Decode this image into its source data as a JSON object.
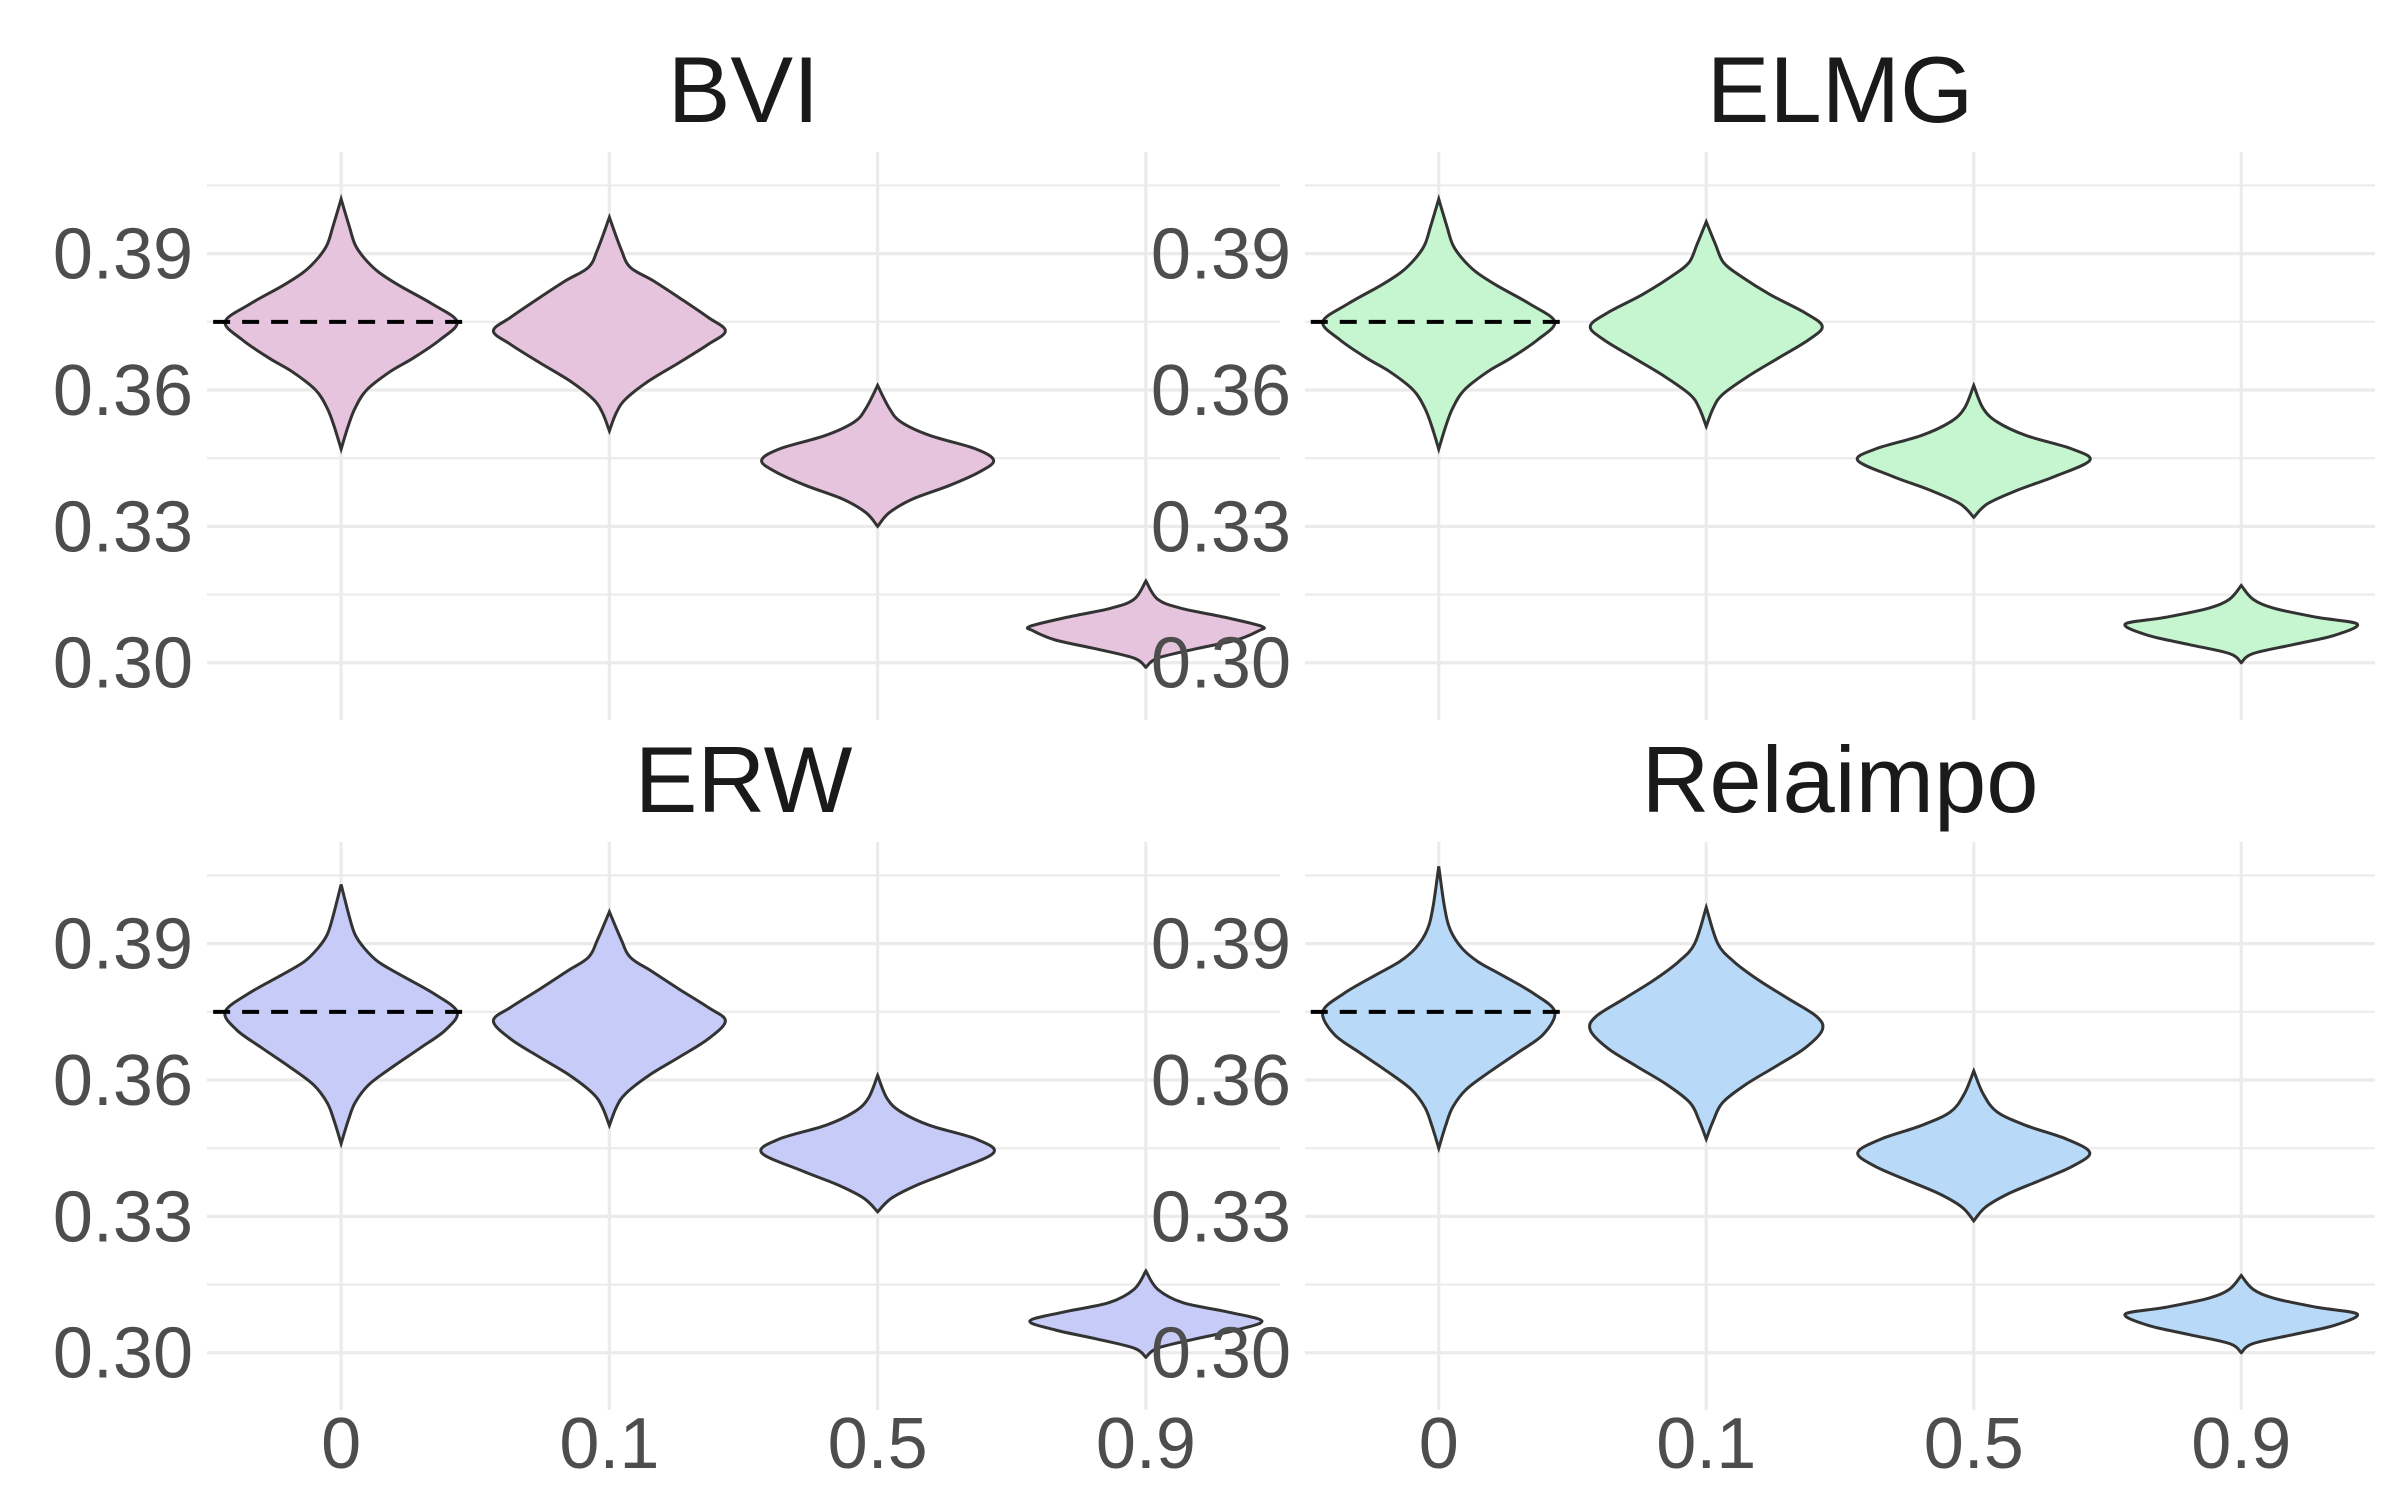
{
  "chart_data": [
    {
      "type": "violin",
      "title": "BVI",
      "color": "#E7C4DD",
      "categories": [
        "0",
        "0.1",
        "0.5",
        "0.9"
      ],
      "ylim": [
        0.294,
        0.415
      ],
      "y_ticks": [
        "0.30",
        "0.33",
        "0.36",
        "0.39"
      ],
      "reference_line": 0.375,
      "violins": [
        {
          "x": "0",
          "min": 0.347,
          "max": 0.402,
          "profile": [
            [
              0.347,
              0.0
            ],
            [
              0.352,
              0.06
            ],
            [
              0.356,
              0.12
            ],
            [
              0.36,
              0.22
            ],
            [
              0.364,
              0.42
            ],
            [
              0.367,
              0.62
            ],
            [
              0.371,
              0.85
            ],
            [
              0.375,
              1.0
            ],
            [
              0.379,
              0.78
            ],
            [
              0.383,
              0.5
            ],
            [
              0.386,
              0.32
            ],
            [
              0.389,
              0.2
            ],
            [
              0.392,
              0.12
            ],
            [
              0.396,
              0.07
            ],
            [
              0.402,
              0.0
            ]
          ]
        },
        {
          "x": "0.1",
          "min": 0.351,
          "max": 0.398,
          "profile": [
            [
              0.351,
              0.0
            ],
            [
              0.355,
              0.06
            ],
            [
              0.358,
              0.14
            ],
            [
              0.362,
              0.34
            ],
            [
              0.366,
              0.6
            ],
            [
              0.37,
              0.85
            ],
            [
              0.373,
              1.0
            ],
            [
              0.376,
              0.85
            ],
            [
              0.38,
              0.62
            ],
            [
              0.384,
              0.38
            ],
            [
              0.387,
              0.18
            ],
            [
              0.391,
              0.1
            ],
            [
              0.398,
              0.0
            ]
          ]
        },
        {
          "x": "0.5",
          "min": 0.33,
          "max": 0.361,
          "profile": [
            [
              0.33,
              0.0
            ],
            [
              0.333,
              0.1
            ],
            [
              0.336,
              0.3
            ],
            [
              0.339,
              0.62
            ],
            [
              0.342,
              0.88
            ],
            [
              0.3445,
              1.0
            ],
            [
              0.347,
              0.85
            ],
            [
              0.35,
              0.45
            ],
            [
              0.353,
              0.2
            ],
            [
              0.356,
              0.1
            ],
            [
              0.361,
              0.0
            ]
          ]
        },
        {
          "x": "0.9",
          "min": 0.299,
          "max": 0.318,
          "profile": [
            [
              0.299,
              0.0
            ],
            [
              0.301,
              0.1
            ],
            [
              0.303,
              0.42
            ],
            [
              0.305,
              0.78
            ],
            [
              0.307,
              0.97
            ],
            [
              0.308,
              1.0
            ],
            [
              0.31,
              0.68
            ],
            [
              0.312,
              0.3
            ],
            [
              0.314,
              0.1
            ],
            [
              0.318,
              0.0
            ]
          ]
        }
      ]
    },
    {
      "type": "violin",
      "title": "ELMG",
      "color": "#C6F6D0",
      "categories": [
        "0",
        "0.1",
        "0.5",
        "0.9"
      ],
      "ylim": [
        0.294,
        0.415
      ],
      "y_ticks": [
        "0.30",
        "0.33",
        "0.36",
        "0.39"
      ],
      "reference_line": 0.375,
      "violins": [
        {
          "x": "0",
          "min": 0.347,
          "max": 0.402,
          "profile": [
            [
              0.347,
              0.0
            ],
            [
              0.352,
              0.06
            ],
            [
              0.356,
              0.12
            ],
            [
              0.36,
              0.22
            ],
            [
              0.364,
              0.42
            ],
            [
              0.367,
              0.62
            ],
            [
              0.371,
              0.85
            ],
            [
              0.375,
              1.0
            ],
            [
              0.379,
              0.78
            ],
            [
              0.383,
              0.5
            ],
            [
              0.386,
              0.32
            ],
            [
              0.389,
              0.2
            ],
            [
              0.392,
              0.12
            ],
            [
              0.396,
              0.07
            ],
            [
              0.402,
              0.0
            ]
          ]
        },
        {
          "x": "0.1",
          "min": 0.352,
          "max": 0.397,
          "profile": [
            [
              0.352,
              0.0
            ],
            [
              0.356,
              0.06
            ],
            [
              0.359,
              0.14
            ],
            [
              0.363,
              0.36
            ],
            [
              0.367,
              0.62
            ],
            [
              0.371,
              0.88
            ],
            [
              0.374,
              1.0
            ],
            [
              0.377,
              0.85
            ],
            [
              0.381,
              0.55
            ],
            [
              0.385,
              0.3
            ],
            [
              0.388,
              0.15
            ],
            [
              0.392,
              0.08
            ],
            [
              0.397,
              0.0
            ]
          ]
        },
        {
          "x": "0.5",
          "min": 0.332,
          "max": 0.361,
          "profile": [
            [
              0.332,
              0.0
            ],
            [
              0.335,
              0.12
            ],
            [
              0.338,
              0.38
            ],
            [
              0.341,
              0.7
            ],
            [
              0.3445,
              1.0
            ],
            [
              0.347,
              0.85
            ],
            [
              0.35,
              0.45
            ],
            [
              0.353,
              0.2
            ],
            [
              0.356,
              0.08
            ],
            [
              0.361,
              0.0
            ]
          ]
        },
        {
          "x": "0.9",
          "min": 0.3,
          "max": 0.317,
          "profile": [
            [
              0.3,
              0.0
            ],
            [
              0.302,
              0.1
            ],
            [
              0.304,
              0.45
            ],
            [
              0.306,
              0.8
            ],
            [
              0.3085,
              1.0
            ],
            [
              0.31,
              0.65
            ],
            [
              0.312,
              0.28
            ],
            [
              0.314,
              0.1
            ],
            [
              0.317,
              0.0
            ]
          ]
        }
      ]
    },
    {
      "type": "violin",
      "title": "ERW",
      "color": "#C6CCF7",
      "categories": [
        "0",
        "0.1",
        "0.5",
        "0.9"
      ],
      "ylim": [
        0.294,
        0.415
      ],
      "y_ticks": [
        "0.30",
        "0.33",
        "0.36",
        "0.39"
      ],
      "reference_line": 0.375,
      "violins": [
        {
          "x": "0",
          "min": 0.346,
          "max": 0.403,
          "profile": [
            [
              0.346,
              0.0
            ],
            [
              0.351,
              0.06
            ],
            [
              0.355,
              0.12
            ],
            [
              0.359,
              0.24
            ],
            [
              0.363,
              0.45
            ],
            [
              0.367,
              0.68
            ],
            [
              0.371,
              0.9
            ],
            [
              0.375,
              1.0
            ],
            [
              0.379,
              0.8
            ],
            [
              0.383,
              0.52
            ],
            [
              0.386,
              0.32
            ],
            [
              0.389,
              0.2
            ],
            [
              0.392,
              0.12
            ],
            [
              0.396,
              0.07
            ],
            [
              0.403,
              0.0
            ]
          ]
        },
        {
          "x": "0.1",
          "min": 0.35,
          "max": 0.397,
          "profile": [
            [
              0.35,
              0.0
            ],
            [
              0.354,
              0.06
            ],
            [
              0.357,
              0.14
            ],
            [
              0.361,
              0.34
            ],
            [
              0.365,
              0.6
            ],
            [
              0.369,
              0.85
            ],
            [
              0.373,
              1.0
            ],
            [
              0.376,
              0.85
            ],
            [
              0.38,
              0.6
            ],
            [
              0.384,
              0.36
            ],
            [
              0.387,
              0.18
            ],
            [
              0.391,
              0.1
            ],
            [
              0.397,
              0.0
            ]
          ]
        },
        {
          "x": "0.5",
          "min": 0.331,
          "max": 0.361,
          "profile": [
            [
              0.331,
              0.0
            ],
            [
              0.334,
              0.12
            ],
            [
              0.337,
              0.35
            ],
            [
              0.34,
              0.65
            ],
            [
              0.344,
              1.0
            ],
            [
              0.347,
              0.85
            ],
            [
              0.35,
              0.45
            ],
            [
              0.353,
              0.2
            ],
            [
              0.356,
              0.08
            ],
            [
              0.361,
              0.0
            ]
          ]
        },
        {
          "x": "0.9",
          "min": 0.299,
          "max": 0.318,
          "profile": [
            [
              0.299,
              0.0
            ],
            [
              0.301,
              0.1
            ],
            [
              0.303,
              0.42
            ],
            [
              0.305,
              0.78
            ],
            [
              0.307,
              1.0
            ],
            [
              0.309,
              0.7
            ],
            [
              0.311,
              0.32
            ],
            [
              0.314,
              0.1
            ],
            [
              0.318,
              0.0
            ]
          ]
        }
      ]
    },
    {
      "type": "violin",
      "title": "Relaimpo",
      "color": "#B8D9F7",
      "categories": [
        "0",
        "0.1",
        "0.5",
        "0.9"
      ],
      "ylim": [
        0.294,
        0.415
      ],
      "y_ticks": [
        "0.30",
        "0.33",
        "0.36",
        "0.39"
      ],
      "reference_line": 0.375,
      "violins": [
        {
          "x": "0",
          "min": 0.345,
          "max": 0.407,
          "profile": [
            [
              0.345,
              0.0
            ],
            [
              0.35,
              0.06
            ],
            [
              0.354,
              0.12
            ],
            [
              0.358,
              0.24
            ],
            [
              0.362,
              0.45
            ],
            [
              0.366,
              0.68
            ],
            [
              0.37,
              0.9
            ],
            [
              0.375,
              1.0
            ],
            [
              0.379,
              0.82
            ],
            [
              0.383,
              0.55
            ],
            [
              0.386,
              0.34
            ],
            [
              0.389,
              0.2
            ],
            [
              0.393,
              0.1
            ],
            [
              0.398,
              0.05
            ],
            [
              0.407,
              0.0
            ]
          ]
        },
        {
          "x": "0.1",
          "min": 0.347,
          "max": 0.398,
          "profile": [
            [
              0.347,
              0.0
            ],
            [
              0.351,
              0.06
            ],
            [
              0.355,
              0.14
            ],
            [
              0.359,
              0.34
            ],
            [
              0.363,
              0.6
            ],
            [
              0.367,
              0.85
            ],
            [
              0.371,
              1.0
            ],
            [
              0.374,
              0.95
            ],
            [
              0.378,
              0.7
            ],
            [
              0.382,
              0.45
            ],
            [
              0.386,
              0.24
            ],
            [
              0.39,
              0.1
            ],
            [
              0.398,
              0.0
            ]
          ]
        },
        {
          "x": "0.5",
          "min": 0.329,
          "max": 0.362,
          "profile": [
            [
              0.329,
              0.0
            ],
            [
              0.332,
              0.1
            ],
            [
              0.335,
              0.3
            ],
            [
              0.338,
              0.58
            ],
            [
              0.341,
              0.85
            ],
            [
              0.344,
              1.0
            ],
            [
              0.347,
              0.8
            ],
            [
              0.35,
              0.45
            ],
            [
              0.353,
              0.2
            ],
            [
              0.357,
              0.08
            ],
            [
              0.362,
              0.0
            ]
          ]
        },
        {
          "x": "0.9",
          "min": 0.3,
          "max": 0.317,
          "profile": [
            [
              0.3,
              0.0
            ],
            [
              0.302,
              0.1
            ],
            [
              0.304,
              0.45
            ],
            [
              0.306,
              0.8
            ],
            [
              0.3085,
              1.0
            ],
            [
              0.31,
              0.65
            ],
            [
              0.312,
              0.28
            ],
            [
              0.314,
              0.1
            ],
            [
              0.317,
              0.0
            ]
          ]
        }
      ]
    }
  ]
}
